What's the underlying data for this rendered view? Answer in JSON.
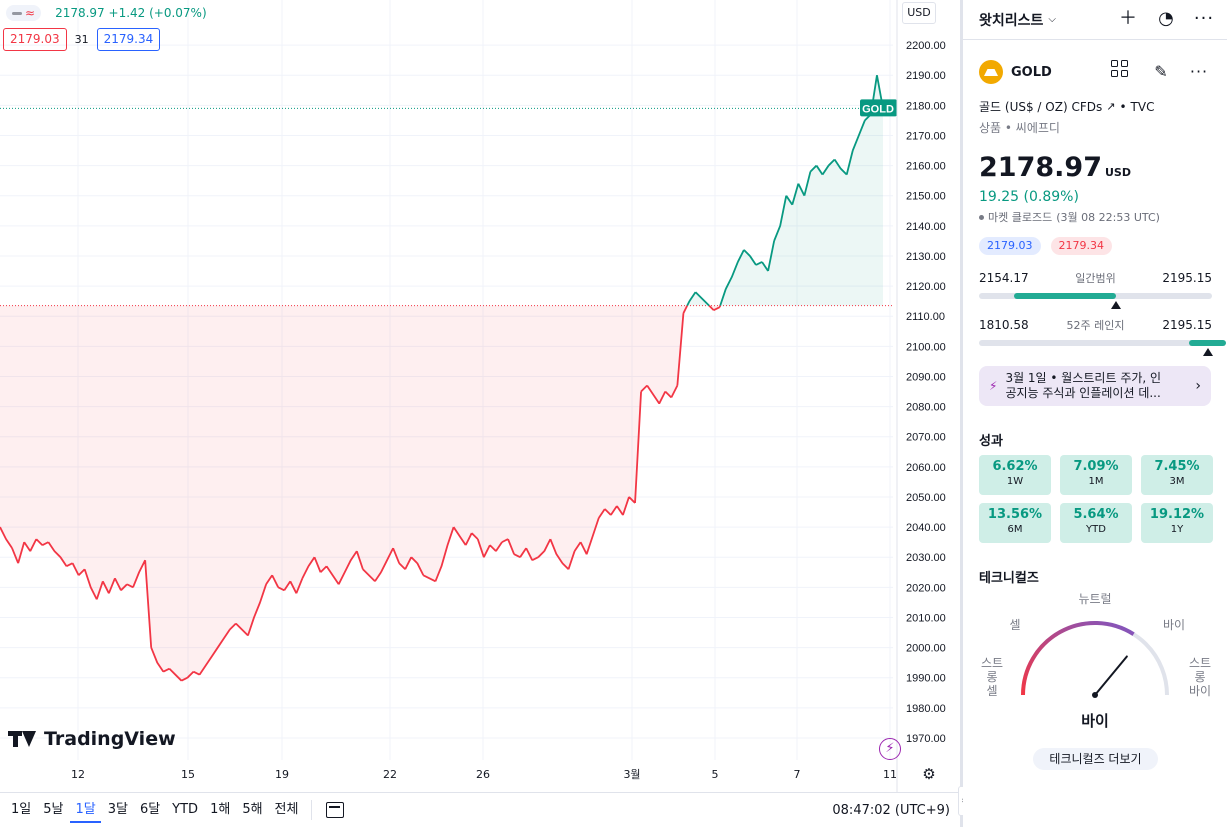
{
  "chart": {
    "symbol_price": "2178.97",
    "symbol_change": "+1.42 (+0.07%)",
    "sell_price": "2179.03",
    "spread": "31",
    "buy_price": "2179.34",
    "currency_btn": "USD",
    "last_price_label": "GOLD",
    "brand": "TradingView",
    "colors": {
      "up": "#089981",
      "down": "#f23645",
      "accent": "#2962ff"
    }
  },
  "chart_data": {
    "type": "line",
    "title": "",
    "xlabel": "",
    "ylabel": "",
    "currency": "USD",
    "y_ticks": [
      "2200.00",
      "2190.00",
      "2180.00",
      "2170.00",
      "2160.00",
      "2150.00",
      "2140.00",
      "2130.00",
      "2120.00",
      "2110.00",
      "2100.00",
      "2090.00",
      "2080.00",
      "2070.00",
      "2060.00",
      "2050.00",
      "2040.00",
      "2030.00",
      "2020.00",
      "2010.00",
      "2000.00",
      "1990.00",
      "1980.00",
      "1970.00"
    ],
    "ylim": [
      1965,
      2205
    ],
    "x_ticks": [
      "12",
      "15",
      "19",
      "22",
      "26",
      "3월",
      "5",
      "7",
      "11"
    ],
    "baseline": 2113.5,
    "last_price": 2178.97,
    "series": [
      {
        "values": [
          2040,
          2036,
          2033,
          2028,
          2035,
          2032,
          2036,
          2034,
          2035,
          2032,
          2030,
          2027,
          2028,
          2024,
          2026,
          2020,
          2016,
          2022,
          2018,
          2023,
          2019,
          2021,
          2020,
          2025,
          2029,
          2000,
          1995,
          1992,
          1993,
          1991,
          1989,
          1990,
          1992,
          1991,
          1994,
          1997,
          2000,
          2003,
          2006,
          2008,
          2006,
          2004,
          2010,
          2015,
          2021,
          2024,
          2020,
          2019,
          2022,
          2018,
          2023,
          2027,
          2030,
          2025,
          2027,
          2024,
          2021,
          2025,
          2029,
          2032,
          2026,
          2024,
          2022,
          2025,
          2029,
          2033,
          2028,
          2026,
          2030,
          2028,
          2024,
          2023,
          2022,
          2027,
          2034,
          2040,
          2037,
          2034,
          2038,
          2036,
          2030,
          2034,
          2032,
          2035,
          2036,
          2031,
          2030,
          2033,
          2029,
          2030,
          2032,
          2036,
          2031,
          2028,
          2026,
          2032,
          2035,
          2031,
          2037,
          2043,
          2046,
          2044,
          2047,
          2044,
          2050,
          2048,
          2085,
          2087,
          2084,
          2081,
          2085,
          2083,
          2087,
          2111,
          2115,
          2118,
          2116,
          2114,
          2112,
          2113,
          2119,
          2123,
          2128,
          2132,
          2130,
          2127,
          2128,
          2125,
          2135,
          2140,
          2150,
          2147,
          2154,
          2150,
          2158,
          2160,
          2157,
          2160,
          2162,
          2159,
          2157,
          2165,
          2170,
          2175,
          2177,
          2190,
          2179
        ]
      }
    ]
  },
  "bottom_bar": {
    "ranges": [
      "1일",
      "5날",
      "1달",
      "3달",
      "6달",
      "YTD",
      "1해",
      "5해",
      "전체"
    ],
    "active_range": 2,
    "time": "08:47:02 (UTC+9)"
  },
  "side": {
    "watchlist_title": "왓치리스트",
    "symbol": "GOLD",
    "desc": "골드 (US$ / OZ) CFDs",
    "exchange": "TVC",
    "category": "상품 • 씨에프디",
    "price": "2178.97",
    "price_unit": "USD",
    "change": "19.25 (0.89%)",
    "market_status": "마켓 클로즈드",
    "market_time": "(3월 08 22:53 UTC)",
    "bid": "2179.03",
    "ask": "2179.34",
    "day_low": "2154.17",
    "day_label": "일간범위",
    "day_high": "2195.15",
    "day_position": 0.59,
    "week_low": "1810.58",
    "week_label": "52주 레인지",
    "week_high": "2195.15",
    "week_position": 0.96,
    "news_line1": "3월 1일 • 월스트리트 주가, 인",
    "news_line2": "공지능 주식과 인플레이션 데...",
    "perf_title": "성과",
    "perf": [
      {
        "v": "6.62%",
        "l": "1W"
      },
      {
        "v": "7.09%",
        "l": "1M"
      },
      {
        "v": "7.45%",
        "l": "3M"
      },
      {
        "v": "13.56%",
        "l": "6M"
      },
      {
        "v": "5.64%",
        "l": "YTD"
      },
      {
        "v": "19.12%",
        "l": "1Y"
      }
    ],
    "tech_title": "테크니컬즈",
    "gauge": {
      "neutral": "뉴트럴",
      "sell": "셀",
      "buy": "바이",
      "strong_sell": [
        "스트",
        "롱",
        "셀"
      ],
      "strong_buy": [
        "스트",
        "롱",
        "바이"
      ],
      "verdict": "바이",
      "needle_value": 0.72
    },
    "more_label": "테크니컬즈 더보기"
  }
}
